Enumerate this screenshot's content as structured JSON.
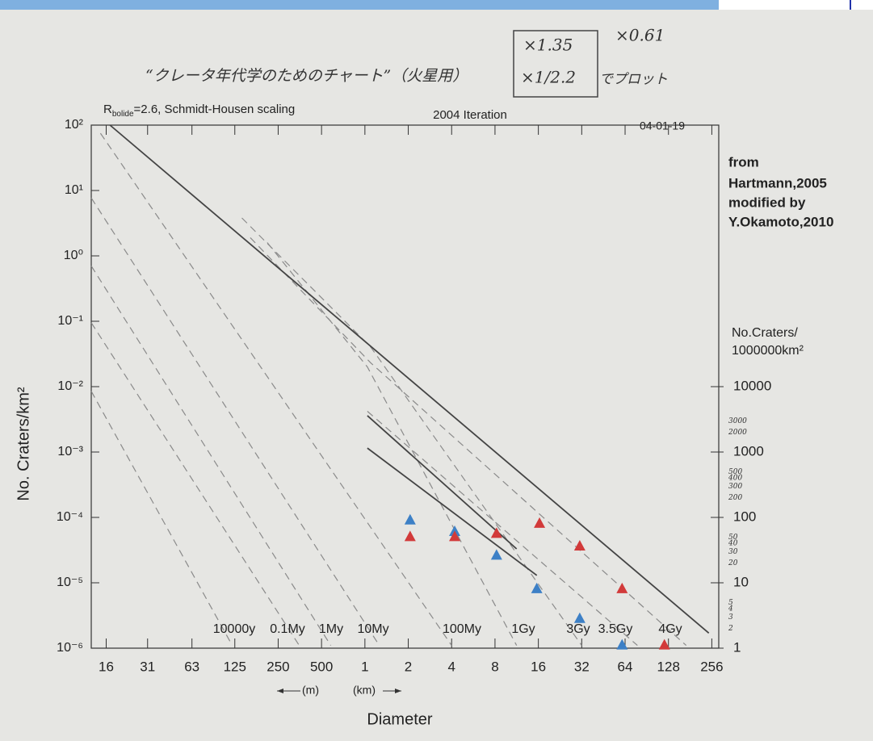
{
  "chart_data": {
    "type": "line",
    "xscale": "log",
    "yscale": "log",
    "header_left": [
      "R",
      "bolide",
      "=2.6, Schmidt-Housen scaling"
    ],
    "header_center": "2004 Iteration",
    "header_right": "04-01-19",
    "handwritten_title": "“クレータ年代学のためのチャート”（火星用）",
    "handwritten_box": [
      "×1.35",
      "×1/2.2",
      "でプロット"
    ],
    "handwritten_extra": "×0.61",
    "credit": [
      "from",
      "Hartmann,2005",
      "modified by",
      "Y.Okamoto,2010"
    ],
    "y_label": "No. Craters/km²",
    "x_label": "Diameter",
    "x_unit_left": "(m)",
    "x_unit_right": "(km)",
    "y2_label": [
      "No.Craters/",
      "1000000km²"
    ],
    "xlim": [
      0.0126,
      286
    ],
    "ylim": [
      1e-06,
      100
    ],
    "y2lim": [
      1,
      100000000
    ],
    "xticks": [
      {
        "value": 0.016,
        "label": "16"
      },
      {
        "value": 0.031,
        "label": "31"
      },
      {
        "value": 0.063,
        "label": "63"
      },
      {
        "value": 0.125,
        "label": "125"
      },
      {
        "value": 0.25,
        "label": "250"
      },
      {
        "value": 0.5,
        "label": "500"
      },
      1,
      2,
      4,
      8,
      16,
      32,
      64,
      128,
      256
    ],
    "yticks": [
      {
        "value": 100,
        "label": "10²"
      },
      {
        "value": 10,
        "label": "10¹"
      },
      {
        "value": 1,
        "label": "10⁰"
      },
      {
        "value": 0.1,
        "label": "10⁻¹"
      },
      {
        "value": 0.01,
        "label": "10⁻²"
      },
      {
        "value": 0.001,
        "label": "10⁻³"
      },
      {
        "value": 0.0001,
        "label": "10⁻⁴"
      },
      {
        "value": 1e-05,
        "label": "10⁻⁵"
      },
      {
        "value": 1e-06,
        "label": "10⁻⁶"
      }
    ],
    "y2ticks": [
      10000,
      1000,
      100,
      10,
      1
    ],
    "y2_handwritten_ticks": [
      3000,
      2000,
      500,
      400,
      300,
      200,
      50,
      40,
      30,
      20,
      5,
      4,
      3,
      2
    ],
    "series": [
      {
        "name": "10000y",
        "color": "#8a8a8a",
        "x": [
          0.0126,
          0.12
        ],
        "values": [
          0.0085,
          1.1e-06
        ]
      },
      {
        "name": "0.1My",
        "color": "#8a8a8a",
        "x": [
          0.0126,
          0.35
        ],
        "values": [
          0.095,
          1.1e-06
        ]
      },
      {
        "name": "1My",
        "color": "#8a8a8a",
        "x": [
          0.0126,
          0.58
        ],
        "values": [
          0.7,
          1.1e-06
        ]
      },
      {
        "name": "10My",
        "color": "#8a8a8a",
        "x": [
          0.0126,
          1.26
        ],
        "values": [
          7.7,
          1.1e-06
        ]
      },
      {
        "name": "100My",
        "color": "#8a8a8a",
        "x": [
          0.0146,
          4
        ],
        "values": [
          75,
          1.1e-06
        ]
      },
      {
        "name": "1Gy",
        "color": "#8a8a8a",
        "x": [
          0.21,
          1.04,
          11.3
        ],
        "values": [
          1.6,
          0.02,
          1.1e-06
        ]
      },
      {
        "name": "3Gy",
        "color": "#8a8a8a",
        "x": [
          0.14,
          1.1,
          32
        ],
        "values": [
          3.8,
          0.04,
          1.1e-06
        ]
      },
      {
        "name": "3.5Gy",
        "color": "#8a8a8a",
        "x": [
          1.04,
          78
        ],
        "values": [
          0.0042,
          1.1e-06
        ]
      },
      {
        "name": "4Gy",
        "color": "#8a8a8a",
        "x": [
          0.16,
          1.1,
          170
        ],
        "values": [
          1.9,
          0.023,
          1.1e-06
        ]
      }
    ],
    "solid_lines": [
      {
        "color": "#444444",
        "x": [
          0.017,
          244
        ],
        "values": [
          100,
          1.7e-06
        ]
      },
      {
        "color": "#444444",
        "x": [
          1.04,
          11.3
        ],
        "values": [
          0.0036,
          3.3e-05
        ]
      },
      {
        "color": "#444444",
        "x": [
          1.04,
          15.6
        ],
        "values": [
          0.00115,
          1.3e-05
        ]
      }
    ],
    "points": [
      {
        "color": "#3d80c6",
        "x": [
          2.06,
          4.2,
          8.2,
          15.6,
          31,
          61
        ],
        "values": [
          9e-05,
          6e-05,
          2.6e-05,
          8e-06,
          2.8e-06,
          1.1e-06
        ]
      },
      {
        "color": "#d23a3a",
        "x": [
          2.06,
          4.2,
          8.2,
          16.3,
          31,
          61,
          120
        ],
        "values": [
          5e-05,
          5e-05,
          5.6e-05,
          8e-05,
          3.6e-05,
          8e-06,
          1.1e-06
        ]
      }
    ]
  }
}
